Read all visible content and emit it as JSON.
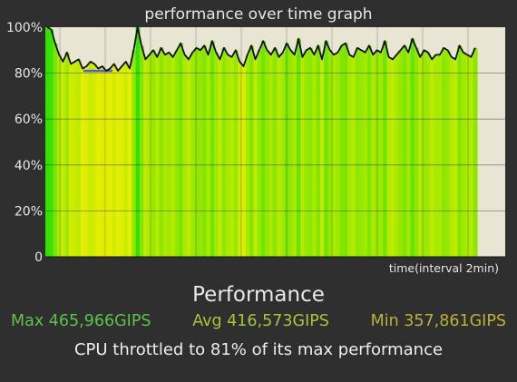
{
  "chart_data": {
    "type": "area",
    "title": "performance over time graph",
    "xlabel": "time(interval 2min)",
    "ylabel": "",
    "ylim": [
      0,
      100
    ],
    "y_ticks": [
      "0",
      "20%",
      "40%",
      "60%",
      "80%",
      "100%"
    ],
    "grid": true,
    "series": [
      {
        "values": [
          100,
          99,
          93,
          88,
          85,
          89,
          84,
          85,
          86,
          82,
          83,
          85,
          84,
          82,
          83,
          81,
          82,
          84,
          81,
          83,
          85,
          82,
          90,
          100,
          92,
          86,
          88,
          90,
          87,
          91,
          88,
          89,
          87,
          90,
          93,
          88,
          86,
          89,
          91,
          90,
          92,
          88,
          94,
          89,
          86,
          91,
          88,
          87,
          90,
          85,
          83,
          88,
          92,
          86,
          90,
          94,
          90,
          88,
          91,
          87,
          89,
          93,
          90,
          88,
          95,
          87,
          90,
          91,
          88,
          92,
          86,
          94,
          90,
          88,
          89,
          92,
          93,
          88,
          87,
          91,
          90,
          89,
          92,
          88,
          90,
          89,
          94,
          87,
          86,
          88,
          90,
          92,
          89,
          95,
          91,
          87,
          90,
          89,
          86,
          88,
          88,
          91,
          90,
          87,
          86,
          92,
          89,
          88,
          87,
          91
        ]
      }
    ]
  },
  "performance": {
    "heading": "Performance",
    "max_text": "Max 465,966GIPS",
    "avg_text": "Avg 416,573GIPS",
    "min_text": "Min 357,861GIPS",
    "throttle_text": "CPU throttled to 81% of its max performance"
  },
  "colors": {
    "background": "#2f2f2f",
    "plot_background": "#e9e5d4",
    "bar_green": "#33e000",
    "bar_yellow": "#e6ee00",
    "line": "#111111",
    "max_marker": "#4a5cf0",
    "grid": "#3a3a3a"
  }
}
